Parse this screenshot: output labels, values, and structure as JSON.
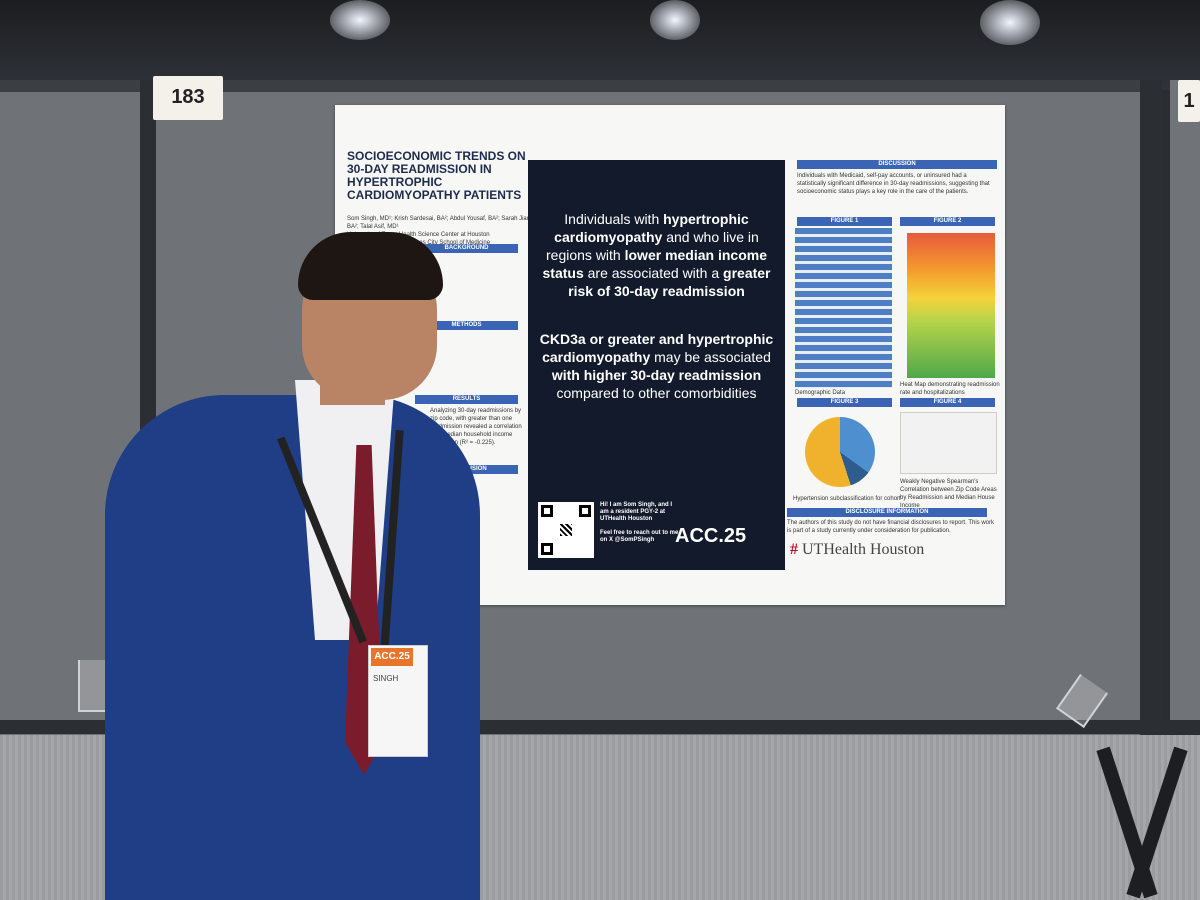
{
  "booth": {
    "number_left": "183",
    "number_right": "1"
  },
  "poster": {
    "title": "SOCIOECONOMIC TRENDS ON 30-DAY READMISSION IN HYPERTROPHIC CARDIOMYOPATHY PATIENTS",
    "authors": "Som Singh, MD¹; Krish Sardesai, BA²; Abdul Yousaf, BA²; Sarah Jiang, BA²; Talal Asif, MD¹",
    "affiliation": "University of Texas Health Science Center at Houston\nUniversity of Missouri Kansas City School of Medicine",
    "sections": {
      "background": "BACKGROUND",
      "methods": "METHODS",
      "results": "RESULTS",
      "conclusion": "CONCLUSION",
      "discussion": "DISCUSSION",
      "disclosure": "DISCLOSURE INFORMATION"
    },
    "results_text": "Analyzing 30-day readmissions by zip code, with greater than one readmission revealed a correlation with median household income correlation (R² = -0.225).",
    "discussion_text": "Individuals with Medicaid, self-pay accounts, or uninsured had a statistically significant difference in 30-day readmissions, suggesting that socioeconomic status plays a key role in the care of the patients.",
    "key_finding_1_parts": [
      "Individuals with ",
      "hypertrophic cardiomyopathy",
      " and who live in regions with ",
      "lower median income status",
      " are associated with a ",
      "greater risk of 30-day readmission"
    ],
    "key_finding_2_parts": [
      "CKD3a or greater and hypertrophic cardiomyopathy",
      " may be associated ",
      "with higher 30-day readmission",
      " compared to other comorbidities"
    ],
    "contact_text": "Hi! I am Som Singh, and I am a resident PGY-2 at UTHealth Houston\n\nFeel free to reach out to me on X @SomPSingh",
    "acc_logo": "ACC.25",
    "figures": {
      "fig1": "FIGURE 1",
      "fig2": "FIGURE 2",
      "fig3": "FIGURE 3",
      "fig4": "FIGURE 4",
      "fig1_caption": "Demographic Data",
      "fig2_caption": "Heat Map demonstrating readmission rate and hospitalizations",
      "fig3_caption": "Hypertension subclassification for cohort",
      "fig4_caption": "Weakly Negative Spearman's Correlation between Zip Code Areas by Readmission and Median House Income"
    },
    "disclosure_text": "The authors of this study do not have financial disclosures to report. This work is part of a study currently under consideration for publication.",
    "institution_logo": "UTHealth Houston",
    "institution_mark": "#"
  },
  "badge": {
    "event": "ACC.25",
    "name": "SINGH"
  }
}
